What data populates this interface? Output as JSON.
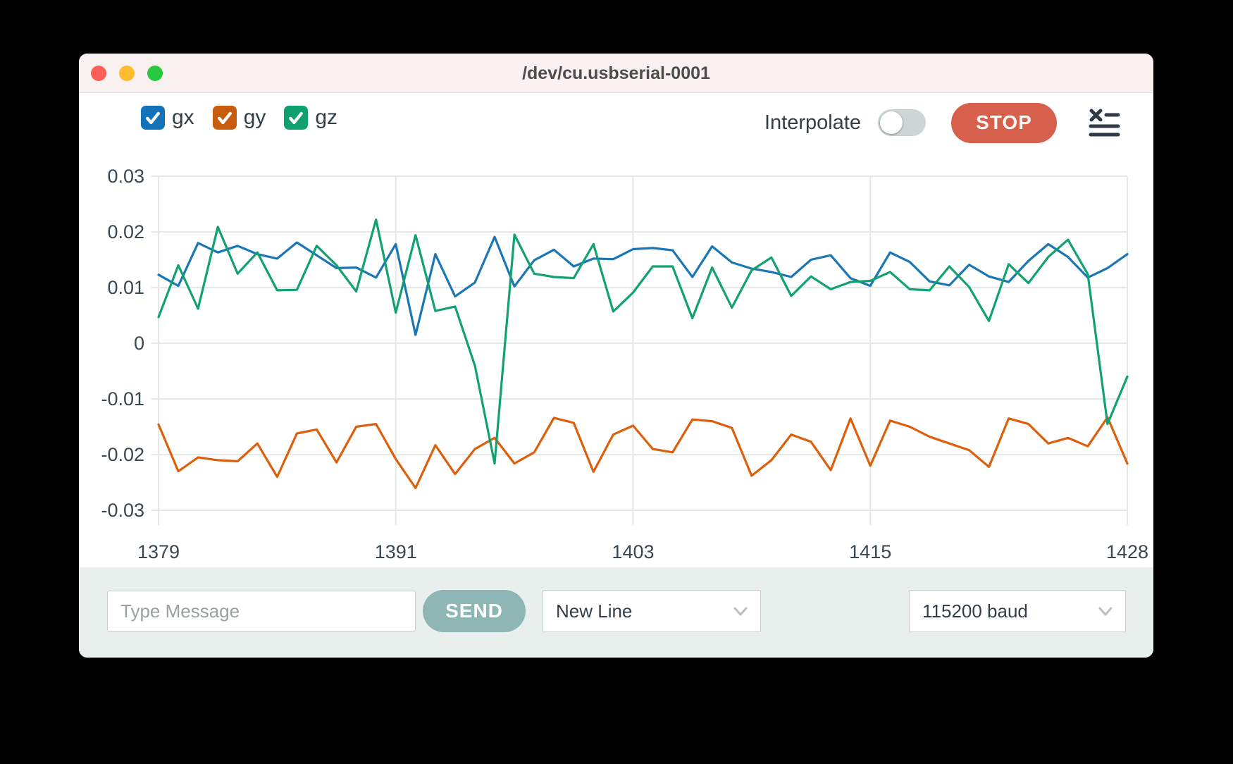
{
  "window": {
    "title": "/dev/cu.usbserial-0001"
  },
  "header": {
    "legend": [
      {
        "label": "gx",
        "checked": true,
        "color": "#1273b8"
      },
      {
        "label": "gy",
        "checked": true,
        "color": "#c85c0e"
      },
      {
        "label": "gz",
        "checked": true,
        "color": "#0fa171"
      }
    ],
    "interpolate_label": "Interpolate",
    "interpolate_on": false,
    "stop_label": "STOP",
    "log_icon": "clear-log-icon"
  },
  "chart_data": {
    "type": "line",
    "x": [
      1379,
      1380,
      1381,
      1382,
      1383,
      1384,
      1385,
      1386,
      1387,
      1388,
      1389,
      1390,
      1391,
      1392,
      1393,
      1394,
      1395,
      1396,
      1397,
      1398,
      1399,
      1400,
      1401,
      1402,
      1403,
      1404,
      1405,
      1406,
      1407,
      1408,
      1409,
      1410,
      1411,
      1412,
      1413,
      1414,
      1415,
      1416,
      1417,
      1418,
      1419,
      1420,
      1421,
      1422,
      1423,
      1424,
      1425,
      1426,
      1427,
      1428
    ],
    "series": [
      {
        "name": "gx",
        "color": "#1b76b5",
        "values": [
          0.0123,
          0.0103,
          0.018,
          0.0163,
          0.0175,
          0.016,
          0.0152,
          0.0181,
          0.0158,
          0.0135,
          0.0136,
          0.0118,
          0.0178,
          0.0015,
          0.016,
          0.0084,
          0.0109,
          0.0191,
          0.0102,
          0.0149,
          0.0168,
          0.0138,
          0.0152,
          0.0151,
          0.0169,
          0.0171,
          0.0167,
          0.0119,
          0.0174,
          0.0145,
          0.0134,
          0.0128,
          0.0119,
          0.015,
          0.0158,
          0.0117,
          0.0103,
          0.0163,
          0.0146,
          0.0111,
          0.0104,
          0.0141,
          0.012,
          0.011,
          0.0148,
          0.0178,
          0.0155,
          0.0118,
          0.0135,
          0.016
        ]
      },
      {
        "name": "gy",
        "color": "#dd5f0b",
        "values": [
          -0.0146,
          -0.023,
          -0.0205,
          -0.021,
          -0.0212,
          -0.018,
          -0.024,
          -0.0162,
          -0.0155,
          -0.0214,
          -0.015,
          -0.0145,
          -0.0208,
          -0.026,
          -0.0183,
          -0.0235,
          -0.019,
          -0.017,
          -0.0216,
          -0.0196,
          -0.0134,
          -0.0143,
          -0.0231,
          -0.0164,
          -0.0148,
          -0.019,
          -0.0196,
          -0.0137,
          -0.014,
          -0.0152,
          -0.0238,
          -0.021,
          -0.0164,
          -0.0177,
          -0.0228,
          -0.0135,
          -0.022,
          -0.0139,
          -0.015,
          -0.0168,
          -0.018,
          -0.0192,
          -0.0222,
          -0.0135,
          -0.0145,
          -0.018,
          -0.017,
          -0.0185,
          -0.0133,
          -0.0216
        ]
      },
      {
        "name": "gz",
        "color": "#12a170",
        "values": [
          0.0047,
          0.014,
          0.0062,
          0.0209,
          0.0125,
          0.0163,
          0.0095,
          0.0096,
          0.0175,
          0.014,
          0.0093,
          0.0222,
          0.0055,
          0.0194,
          0.0058,
          0.0066,
          -0.004,
          -0.0216,
          0.0195,
          0.0125,
          0.0119,
          0.0117,
          0.0178,
          0.0057,
          0.0091,
          0.0138,
          0.0138,
          0.0045,
          0.0136,
          0.0064,
          0.0131,
          0.0154,
          0.0085,
          0.012,
          0.0097,
          0.011,
          0.0112,
          0.0128,
          0.0097,
          0.0095,
          0.0138,
          0.0101,
          0.004,
          0.0142,
          0.0108,
          0.0155,
          0.0186,
          0.0124,
          -0.0145,
          -0.006
        ]
      }
    ],
    "title": "",
    "xlabel": "",
    "ylabel": "",
    "ylim": [
      -0.03,
      0.03
    ],
    "yticks": [
      0.03,
      0.02,
      0.01,
      0,
      -0.01,
      -0.02,
      -0.03
    ],
    "ytick_labels": [
      "0.03",
      "0.02",
      "0.01",
      "0",
      "-0.01",
      "-0.02",
      "-0.03"
    ],
    "xticks": [
      1379,
      1391,
      1403,
      1415,
      1428
    ],
    "grid": true,
    "grid_color": "#e5e8e8",
    "axis_label_color": "#3a4750",
    "legend_position": "top-left-checkboxes"
  },
  "footer": {
    "message_placeholder": "Type Message",
    "send_label": "SEND",
    "line_ending_value": "New Line",
    "baud_value": "115200 baud"
  }
}
